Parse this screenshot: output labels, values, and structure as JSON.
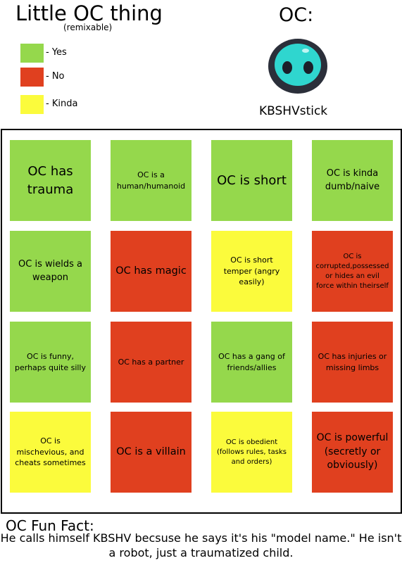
{
  "header": {
    "title": "Little OC thing",
    "subtitle": "(remixable)"
  },
  "legend": [
    {
      "color": "#95d84c",
      "label": "- Yes"
    },
    {
      "color": "#e0401f",
      "label": "- No"
    },
    {
      "color": "#fbfb3c",
      "label": "- Kinda"
    }
  ],
  "oc": {
    "label": "OC:",
    "name": "KBSHVstick"
  },
  "grid": {
    "tiles": [
      {
        "text": "OC has trauma",
        "color": "#95d84c"
      },
      {
        "text": "OC is a human/humanoid",
        "color": "#95d84c"
      },
      {
        "text": "OC is short",
        "color": "#95d84c"
      },
      {
        "text": "OC is kinda dumb/naive",
        "color": "#95d84c"
      },
      {
        "text": "OC is wields a weapon",
        "color": "#95d84c"
      },
      {
        "text": "OC has magic",
        "color": "#e0401f"
      },
      {
        "text": "OC is short temper (angry easily)",
        "color": "#fbfb3c"
      },
      {
        "text": "OC is corrupted,possessed or hides an evil force within theirself",
        "color": "#e0401f"
      },
      {
        "text": "OC is funny, perhaps quite silly",
        "color": "#95d84c"
      },
      {
        "text": "OC has a partner",
        "color": "#e0401f"
      },
      {
        "text": "OC has a gang of friends/allies",
        "color": "#95d84c"
      },
      {
        "text": "OC has injuries or missing limbs",
        "color": "#e0401f"
      },
      {
        "text": "OC is mischevious, and cheats sometimes",
        "color": "#fbfb3c"
      },
      {
        "text": "OC is a villain",
        "color": "#e0401f"
      },
      {
        "text": "OC is obedient (follows rules, tasks and orders)",
        "color": "#fbfb3c"
      },
      {
        "text": "OC is powerful (secretly or obviously)",
        "color": "#e0401f"
      }
    ]
  },
  "fun_fact": {
    "title": "OC Fun Fact:",
    "text": "He calls himself KBSHV becsuse he says it's his \"model name.\" He isn't a robot, just a traumatized child."
  }
}
